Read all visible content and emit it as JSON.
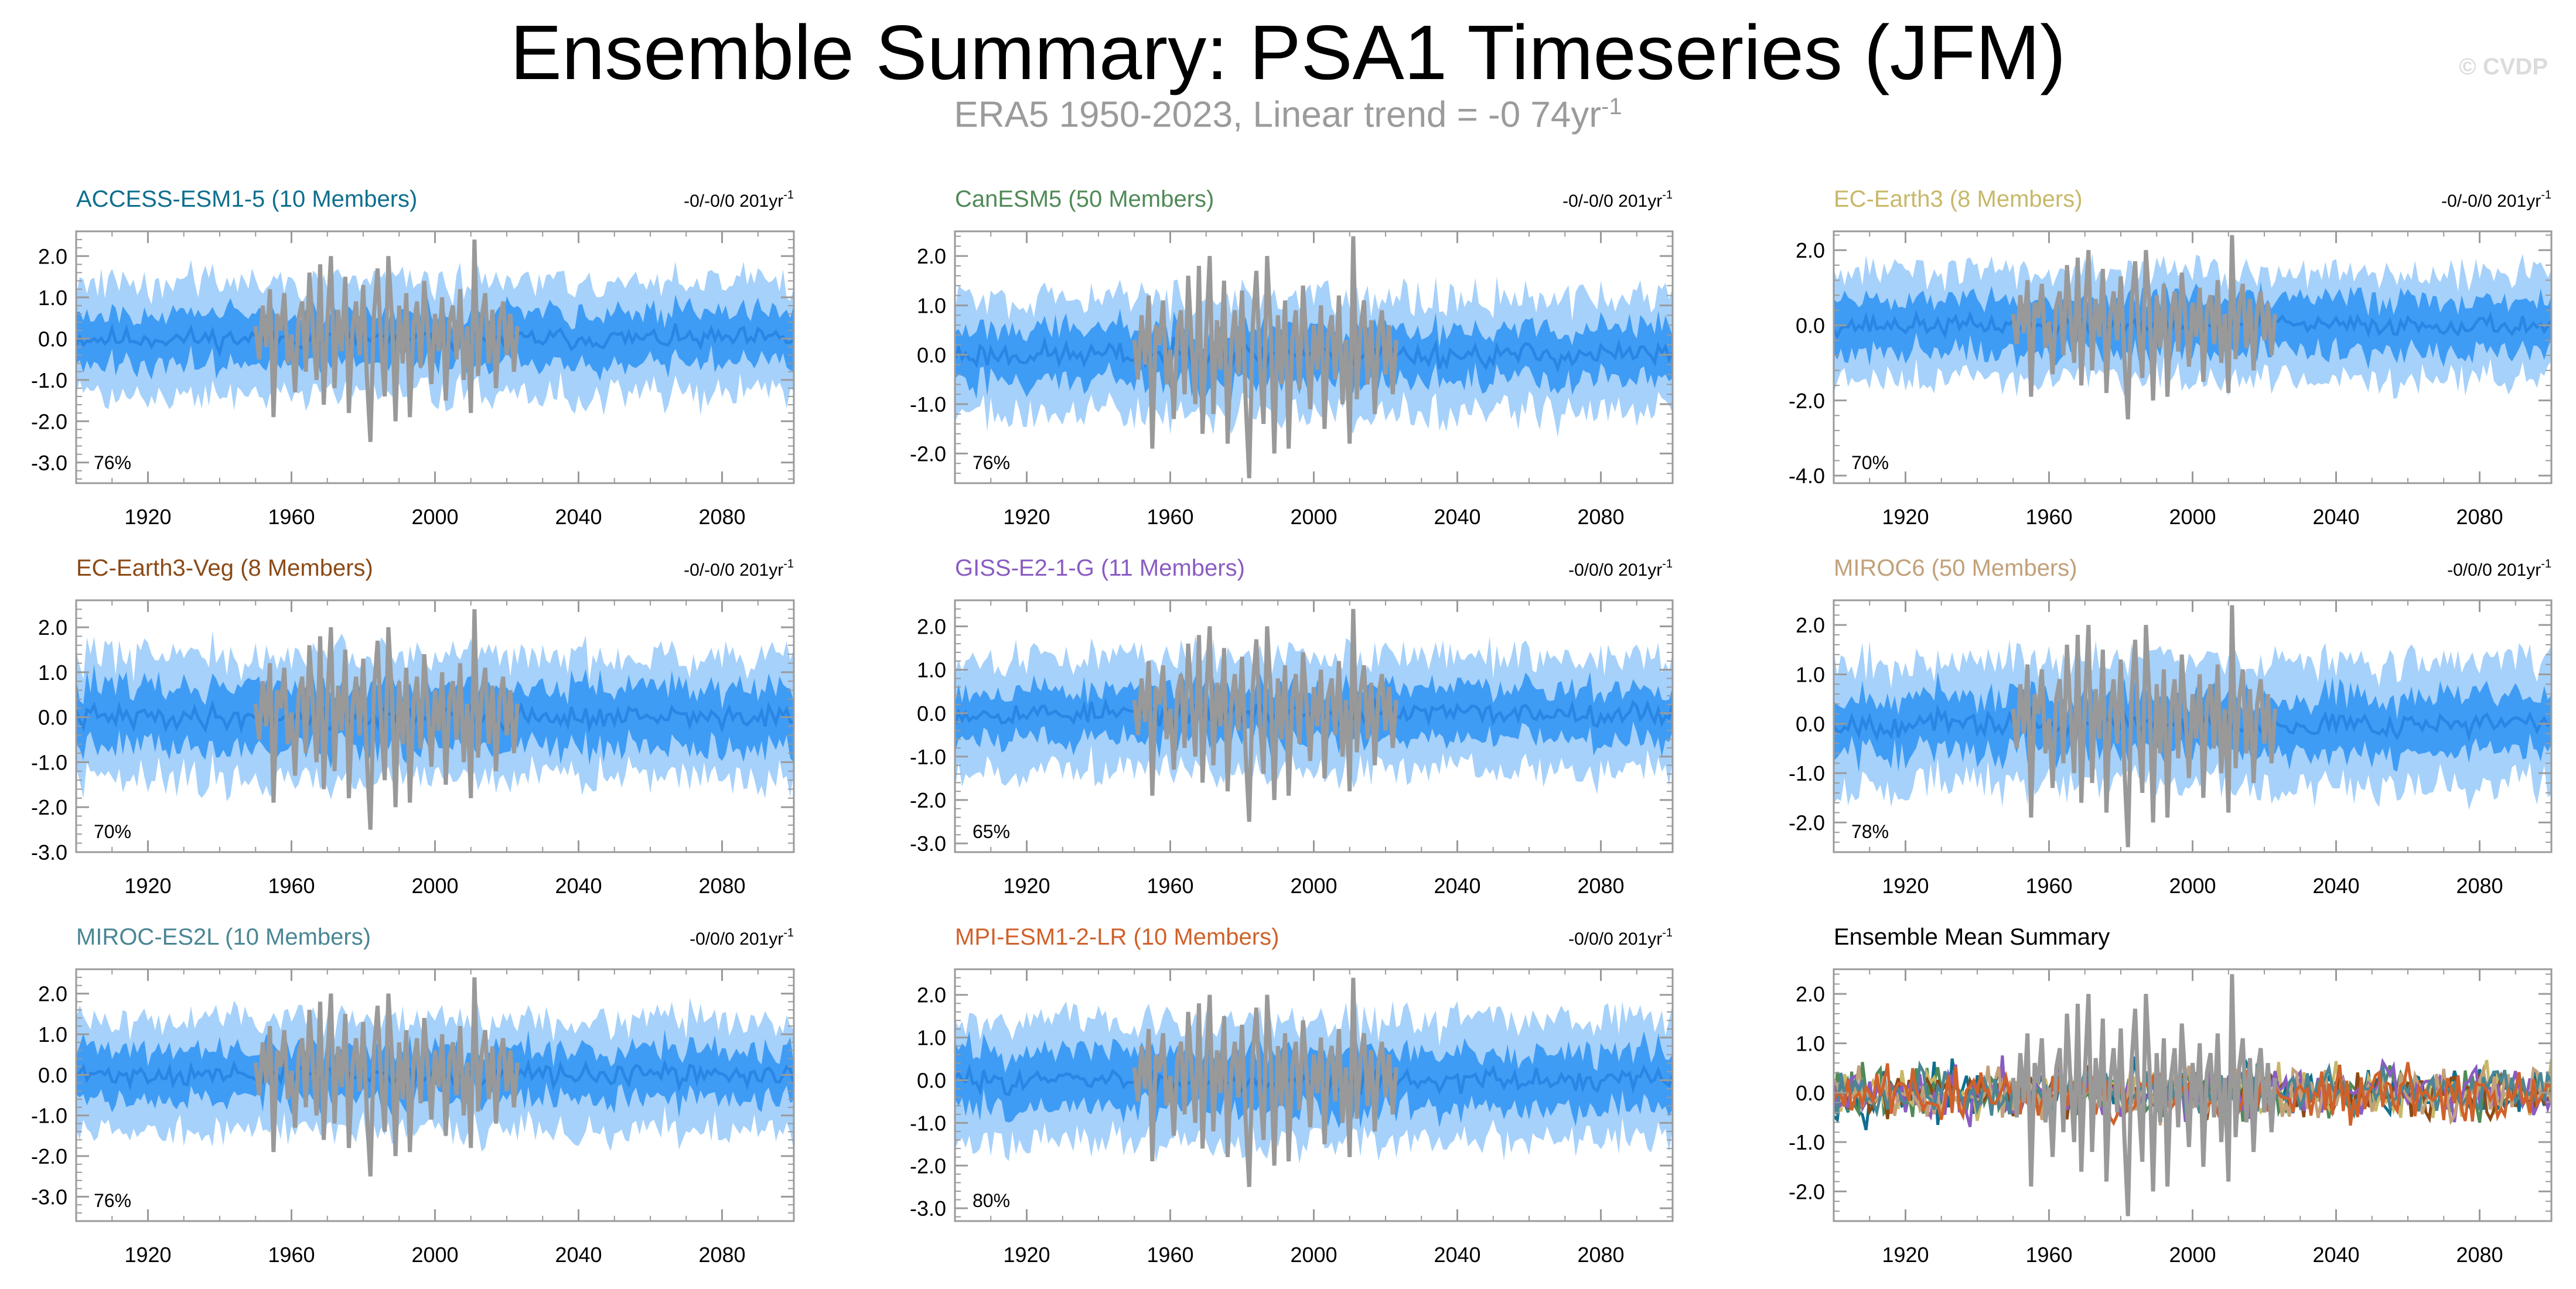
{
  "header": {
    "title": "Ensemble Summary: PSA1 Timeseries (JFM)",
    "subtitle": "ERA5 1950-2023, Linear trend = -0 74yr",
    "subtitle_sup": "-1",
    "watermark": "© CVDP"
  },
  "colors": {
    "band_outer": "#a6d1fa",
    "band_inner": "#3f9cf5",
    "ens_mean": "#2a86e4",
    "obs": "#999999",
    "axis": "#9a9a9a"
  },
  "chart_data": [
    {
      "type": "line",
      "title": "ACCESS-ESM1-5 (10 Members)",
      "title_color": "#0f6f8e",
      "trend": "-0/-0/0 201yr",
      "trend_sup": "-1",
      "pct": "76%",
      "xlim": [
        1900,
        2100
      ],
      "ylim": [
        -3.5,
        2.6
      ],
      "yticks": [
        2,
        1,
        0,
        -1,
        -2,
        -3
      ],
      "yticklabels": [
        "2.0",
        "1.0",
        "0.0",
        "-1.0",
        "-2.0",
        "-3.0"
      ],
      "xticks": [
        1920,
        1960,
        2000,
        2040,
        2080
      ],
      "xticklabels": [
        "1920",
        "1960",
        "2000",
        "2040",
        "2080"
      ],
      "outer": 1.35,
      "inner": 0.65,
      "seed": 11
    },
    {
      "type": "line",
      "title": "CanESM5 (50 Members)",
      "title_color": "#4f8a57",
      "trend": "-0/-0/0 201yr",
      "trend_sup": "-1",
      "pct": "76%",
      "xlim": [
        1900,
        2100
      ],
      "ylim": [
        -2.6,
        2.5
      ],
      "yticks": [
        2,
        1,
        0,
        -1,
        -2
      ],
      "yticklabels": [
        "2.0",
        "1.0",
        "0.0",
        "-1.0",
        "-2.0"
      ],
      "xticks": [
        1920,
        1960,
        2000,
        2040,
        2080
      ],
      "xticklabels": [
        "1920",
        "1960",
        "2000",
        "2040",
        "2080"
      ],
      "outer": 1.15,
      "inner": 0.55,
      "seed": 23
    },
    {
      "type": "line",
      "title": "EC-Earth3 (8 Members)",
      "title_color": "#c8b869",
      "trend": "-0/-0/0 201yr",
      "trend_sup": "-1",
      "pct": "70%",
      "xlim": [
        1900,
        2100
      ],
      "ylim": [
        -4.2,
        2.5
      ],
      "yticks": [
        2,
        0,
        -2,
        -4
      ],
      "yticklabels": [
        "2.0",
        "0.0",
        "-2.0",
        "-4.0"
      ],
      "xticks": [
        1920,
        1960,
        2000,
        2040,
        2080
      ],
      "xticklabels": [
        "1920",
        "1960",
        "2000",
        "2040",
        "2080"
      ],
      "outer": 1.4,
      "inner": 0.75,
      "seed": 37
    },
    {
      "type": "line",
      "title": "EC-Earth3-Veg (8 Members)",
      "title_color": "#8b4a16",
      "trend": "-0/-0/0 201yr",
      "trend_sup": "-1",
      "pct": "70%",
      "xlim": [
        1900,
        2100
      ],
      "ylim": [
        -3.0,
        2.6
      ],
      "yticks": [
        2,
        1,
        0,
        -1,
        -2,
        -3
      ],
      "yticklabels": [
        "2.0",
        "1.0",
        "0.0",
        "-1.0",
        "-2.0",
        "-3.0"
      ],
      "xticks": [
        1920,
        1960,
        2000,
        2040,
        2080
      ],
      "xticklabels": [
        "1920",
        "1960",
        "2000",
        "2040",
        "2080"
      ],
      "outer": 1.35,
      "inner": 0.7,
      "seed": 41
    },
    {
      "type": "line",
      "title": "GISS-E2-1-G (11 Members)",
      "title_color": "#8a5cc2",
      "trend": "-0/0/0 201yr",
      "trend_sup": "-1",
      "pct": "65%",
      "xlim": [
        1900,
        2100
      ],
      "ylim": [
        -3.2,
        2.6
      ],
      "yticks": [
        2,
        1,
        0,
        -1,
        -2,
        -3
      ],
      "yticklabels": [
        "2.0",
        "1.0",
        "0.0",
        "-1.0",
        "-2.0",
        "-3.0"
      ],
      "xticks": [
        1920,
        1960,
        2000,
        2040,
        2080
      ],
      "xticklabels": [
        "1920",
        "1960",
        "2000",
        "2040",
        "2080"
      ],
      "outer": 1.3,
      "inner": 0.6,
      "seed": 53
    },
    {
      "type": "line",
      "title": "MIROC6 (50 Members)",
      "title_color": "#c2a07a",
      "trend": "-0/0/0 201yr",
      "trend_sup": "-1",
      "pct": "78%",
      "xlim": [
        1900,
        2100
      ],
      "ylim": [
        -2.6,
        2.5
      ],
      "yticks": [
        2,
        1,
        0,
        -1,
        -2
      ],
      "yticklabels": [
        "2.0",
        "1.0",
        "0.0",
        "-1.0",
        "-2.0"
      ],
      "xticks": [
        1920,
        1960,
        2000,
        2040,
        2080
      ],
      "xticklabels": [
        "1920",
        "1960",
        "2000",
        "2040",
        "2080"
      ],
      "outer": 1.25,
      "inner": 0.6,
      "seed": 67
    },
    {
      "type": "line",
      "title": "MIROC-ES2L (10 Members)",
      "title_color": "#4a8694",
      "trend": "-0/0/0 201yr",
      "trend_sup": "-1",
      "pct": "76%",
      "xlim": [
        1900,
        2100
      ],
      "ylim": [
        -3.6,
        2.6
      ],
      "yticks": [
        2,
        1,
        0,
        -1,
        -2,
        -3
      ],
      "yticklabels": [
        "2.0",
        "1.0",
        "0.0",
        "-1.0",
        "-2.0",
        "-3.0"
      ],
      "xticks": [
        1920,
        1960,
        2000,
        2040,
        2080
      ],
      "xticklabels": [
        "1920",
        "1960",
        "2000",
        "2040",
        "2080"
      ],
      "outer": 1.35,
      "inner": 0.65,
      "seed": 71
    },
    {
      "type": "line",
      "title": "MPI-ESM1-2-LR (10 Members)",
      "title_color": "#d0612a",
      "trend": "-0/0/0 201yr",
      "trend_sup": "-1",
      "pct": "80%",
      "xlim": [
        1900,
        2100
      ],
      "ylim": [
        -3.3,
        2.6
      ],
      "yticks": [
        2,
        1,
        0,
        -1,
        -2,
        -3
      ],
      "yticklabels": [
        "2.0",
        "1.0",
        "0.0",
        "-1.0",
        "-2.0",
        "-3.0"
      ],
      "xticks": [
        1920,
        1960,
        2000,
        2040,
        2080
      ],
      "xticklabels": [
        "1920",
        "1960",
        "2000",
        "2040",
        "2080"
      ],
      "outer": 1.4,
      "inner": 0.7,
      "seed": 83
    },
    {
      "type": "line",
      "kind": "summary",
      "title": "Ensemble Mean Summary",
      "title_color": "#000000",
      "xlim": [
        1900,
        2100
      ],
      "ylim": [
        -2.6,
        2.5
      ],
      "yticks": [
        2,
        1,
        0,
        -1,
        -2
      ],
      "yticklabels": [
        "2.0",
        "1.0",
        "0.0",
        "-1.0",
        "-2.0"
      ],
      "xticks": [
        1920,
        1960,
        2000,
        2040,
        2080
      ],
      "xticklabels": [
        "1920",
        "1960",
        "2000",
        "2040",
        "2080"
      ],
      "series_colors": [
        "#0f6f8e",
        "#4f8a57",
        "#c8b869",
        "#8b4a16",
        "#8a5cc2",
        "#c2a07a",
        "#4a8694",
        "#d0612a"
      ],
      "series_amp": 0.45,
      "seed": 97
    }
  ],
  "observations": {
    "name": "ERA5",
    "years": [
      1950,
      1951,
      1952,
      1953,
      1954,
      1955,
      1956,
      1957,
      1958,
      1959,
      1960,
      1961,
      1962,
      1963,
      1964,
      1965,
      1966,
      1967,
      1968,
      1969,
      1970,
      1971,
      1972,
      1973,
      1974,
      1975,
      1976,
      1977,
      1978,
      1979,
      1980,
      1981,
      1982,
      1983,
      1984,
      1985,
      1986,
      1987,
      1988,
      1989,
      1990,
      1991,
      1992,
      1993,
      1994,
      1995,
      1996,
      1997,
      1998,
      1999,
      2000,
      2001,
      2002,
      2003,
      2004,
      2005,
      2006,
      2007,
      2008,
      2009,
      2010,
      2011,
      2012,
      2013,
      2014,
      2015,
      2016,
      2017,
      2018,
      2019,
      2020,
      2021,
      2022,
      2023
    ],
    "values": [
      0.3,
      -0.5,
      0.8,
      -0.2,
      1.2,
      -1.9,
      0.6,
      0.2,
      1.1,
      -0.6,
      0.1,
      -1.3,
      0.5,
      0.9,
      -0.8,
      1.6,
      0.2,
      -1.0,
      1.8,
      -1.6,
      0.4,
      2.0,
      -1.2,
      0.7,
      -0.3,
      1.5,
      -1.8,
      0.2,
      0.9,
      -0.4,
      1.3,
      -0.9,
      -2.5,
      0.6,
      1.7,
      -0.2,
      -1.4,
      2.0,
      0.5,
      -2.0,
      0.8,
      -0.6,
      1.1,
      -1.9,
      0.3,
      0.9,
      -0.7,
      1.4,
      0.2,
      -1.1,
      0.6,
      -0.3,
      1.0,
      -1.5,
      0.4,
      0.8,
      -0.5,
      1.2,
      -1.0,
      0.3,
      -1.8,
      2.4,
      -0.9,
      0.5,
      1.1,
      -0.6,
      0.7,
      -1.2,
      0.4,
      0.9,
      -0.4,
      0.6,
      -0.8,
      0.3
    ]
  }
}
